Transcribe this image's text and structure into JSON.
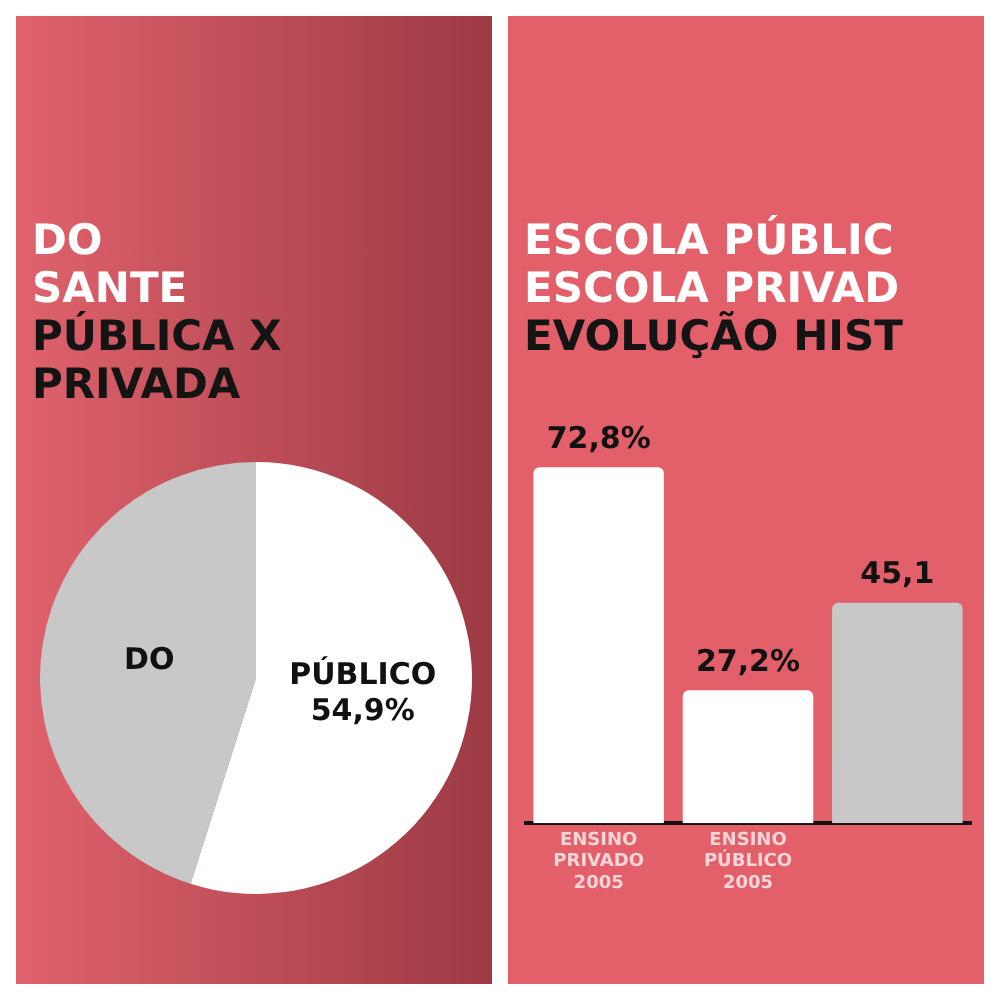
{
  "chart_data": [
    {
      "type": "pie",
      "title": "DO\nSANTE",
      "subtitle": "PÚBLICA X\nPRIVADA",
      "categories": [
        "PÚBLICO",
        "DO"
      ],
      "values": [
        54.9,
        45.1
      ],
      "colors": [
        "#ffffff",
        "#c8c8c8"
      ],
      "value_labels": [
        "54,9%",
        null
      ]
    },
    {
      "type": "bar",
      "title": "ESCOLA PÚBLIC\nESCOLA PRIVAD",
      "subtitle": "EVOLUÇÃO HIST",
      "categories": [
        "ENSINO PRIVADO 2005",
        "ENSINO PÚBLICO 2005",
        null
      ],
      "values": [
        72.8,
        27.2,
        45.1
      ],
      "colors": [
        "#ffffff",
        "#ffffff",
        "#c8c8c8"
      ],
      "value_labels": [
        "72,8%",
        "27,2%",
        "45,1"
      ]
    }
  ]
}
